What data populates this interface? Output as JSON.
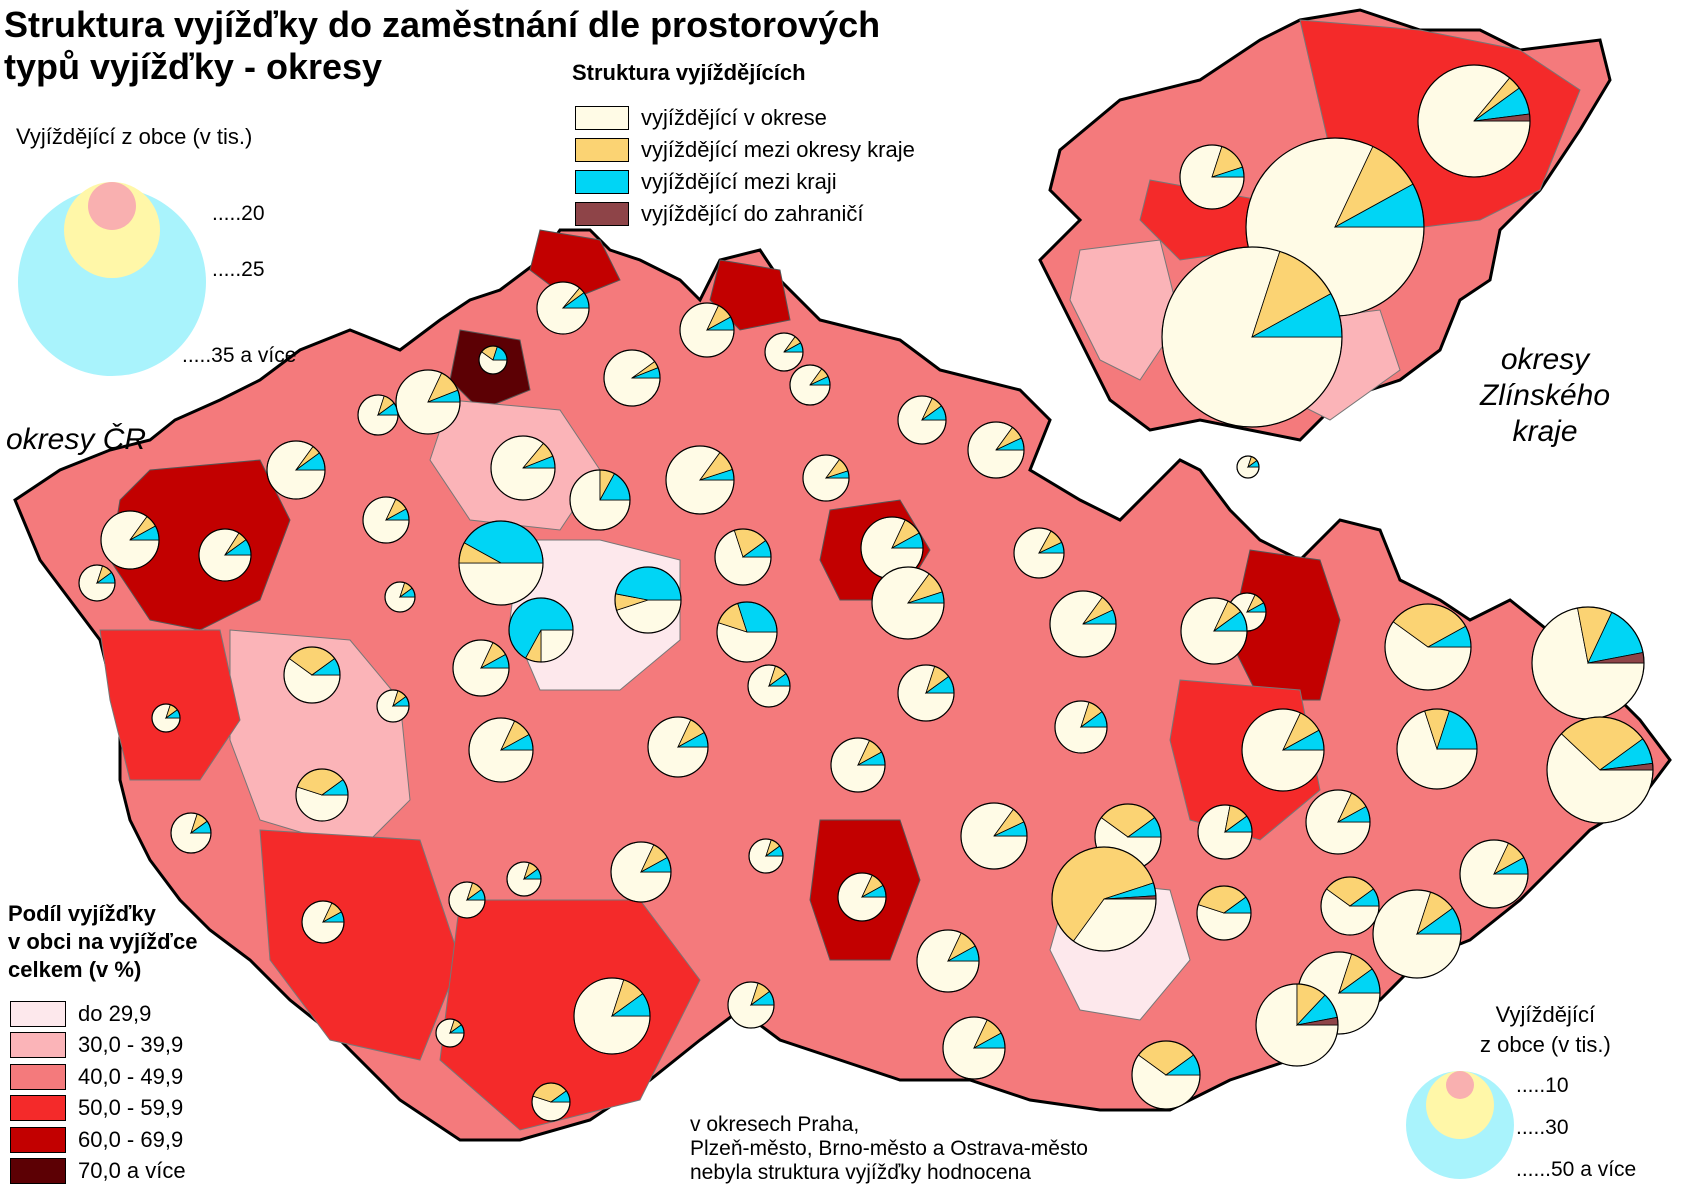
{
  "title": {
    "line1": "Struktura vyjížďky do zaměstnání dle prostorových",
    "line2": "typů vyjížďky - okresy"
  },
  "structure_legend": {
    "title": "Struktura vyjíždějících",
    "items": [
      {
        "label": "vyjíždějící v okrese",
        "color": "#fffbe6"
      },
      {
        "label": "vyjíždějící mezi okresy kraje",
        "color": "#fbd373"
      },
      {
        "label": "vyjíždějící mezi kraji",
        "color": "#00d5f5"
      },
      {
        "label": "vyjíždějící do zahraničí",
        "color": "#8e4448"
      }
    ]
  },
  "size_legend_cr": {
    "title": "Vyjíždějící z obce (v tis.)",
    "labels": [
      ".....20",
      ".....25",
      ".....35 a více"
    ],
    "colors": [
      "#f9b0b0",
      "#fff7a8",
      "#a9f3fc"
    ]
  },
  "size_legend_zlin": {
    "title_line1": "Vyjíždějící",
    "title_line2": "z obce (v tis.)",
    "labels": [
      ".....10",
      ".....30",
      "......50 a více"
    ]
  },
  "region_labels": {
    "cr": "okresy ČR",
    "zlin_line1": "okresy",
    "zlin_line2": "Zlínského",
    "zlin_line3": "kraje"
  },
  "share_legend": {
    "title_line1": "Podíl vyjížďky",
    "title_line2": "v obci na vyjížďce",
    "title_line3": "celkem (v %)",
    "items": [
      {
        "label": "do 29,9",
        "color": "#fde8ec"
      },
      {
        "label": "30,0 - 39,9",
        "color": "#fbb4b8"
      },
      {
        "label": "40,0 - 49,9",
        "color": "#f47a7c"
      },
      {
        "label": "50,0 - 59,9",
        "color": "#f42a2a"
      },
      {
        "label": "60,0 - 69,9",
        "color": "#c20000"
      },
      {
        "label": "70,0 a více",
        "color": "#5c0004"
      }
    ]
  },
  "note": {
    "line1": "v okresech Praha,",
    "line2": "Plzeň-město, Brno-město a Ostrava-město",
    "line3": "nebyla struktura vyjížďky hodnocena"
  }
}
